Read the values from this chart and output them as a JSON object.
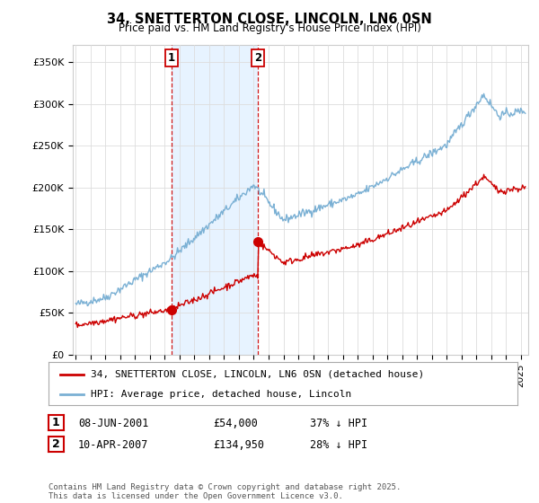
{
  "title1": "34, SNETTERTON CLOSE, LINCOLN, LN6 0SN",
  "title2": "Price paid vs. HM Land Registry's House Price Index (HPI)",
  "ylabel_ticks": [
    "£0",
    "£50K",
    "£100K",
    "£150K",
    "£200K",
    "£250K",
    "£300K",
    "£350K"
  ],
  "ytick_vals": [
    0,
    50000,
    100000,
    150000,
    200000,
    250000,
    300000,
    350000
  ],
  "ylim": [
    0,
    370000
  ],
  "xlim_start": 1994.8,
  "xlim_end": 2025.5,
  "transaction1": {
    "date": "08-JUN-2001",
    "price": 54000,
    "year": 2001.44
  },
  "transaction2": {
    "date": "10-APR-2007",
    "price": 134950,
    "year": 2007.27
  },
  "legend_line1": "34, SNETTERTON CLOSE, LINCOLN, LN6 0SN (detached house)",
  "legend_line2": "HPI: Average price, detached house, Lincoln",
  "footer": "Contains HM Land Registry data © Crown copyright and database right 2025.\nThis data is licensed under the Open Government Licence v3.0.",
  "color_red": "#cc0000",
  "color_blue": "#7ab0d4",
  "color_shade": "#ddeeff",
  "color_vline": "#cc0000",
  "background_color": "#ffffff",
  "grid_color": "#dddddd",
  "table_row1": [
    "1",
    "08-JUN-2001",
    "£54,000",
    "37% ↓ HPI"
  ],
  "table_row2": [
    "2",
    "10-APR-2007",
    "£134,950",
    "28% ↓ HPI"
  ]
}
